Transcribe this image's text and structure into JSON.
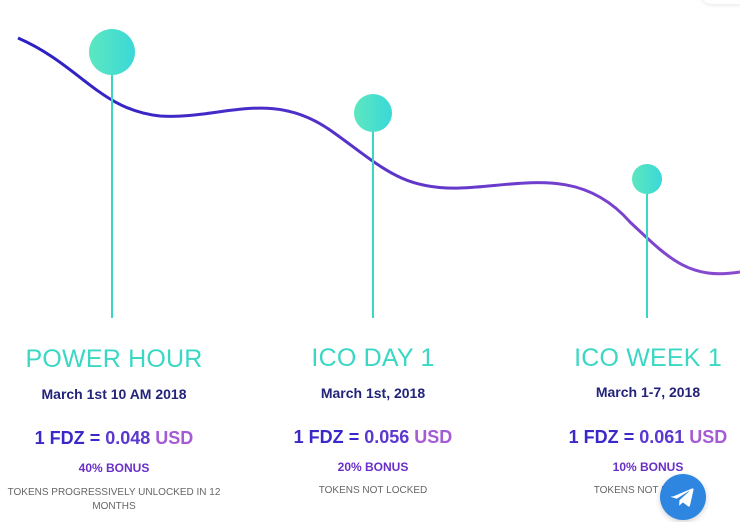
{
  "colors": {
    "teal": "#3ad8c4",
    "curve_start": "#2a1fc4",
    "curve_end": "#8a4ad0",
    "navy": "#23237a",
    "telegram": "#2e86e0"
  },
  "tiers": [
    {
      "title": "POWER HOUR",
      "date": "March 1st 10 AM 2018",
      "price_fdz": "1 FDZ",
      "price_eq": "=",
      "price_value": "0.048",
      "price_currency": "USD",
      "bonus": "40% BONUS",
      "note": "TOKENS PROGRESSIVELY UNLOCKED IN 12 MONTHS"
    },
    {
      "title": "ICO DAY 1",
      "date": "March 1st, 2018",
      "price_fdz": "1 FDZ",
      "price_eq": "=",
      "price_value": "0.056",
      "price_currency": "USD",
      "bonus": "20% BONUS",
      "note": "TOKENS NOT LOCKED"
    },
    {
      "title": "ICO WEEK 1",
      "date": "March 1-7, 2018",
      "price_fdz": "1 FDZ",
      "price_eq": "=",
      "price_value": "0.061",
      "price_currency": "USD",
      "bonus": "10% BONUS",
      "note": "TOKENS NOT LOCKED"
    }
  ],
  "telegram_button": {
    "icon": "telegram-plane-icon"
  }
}
